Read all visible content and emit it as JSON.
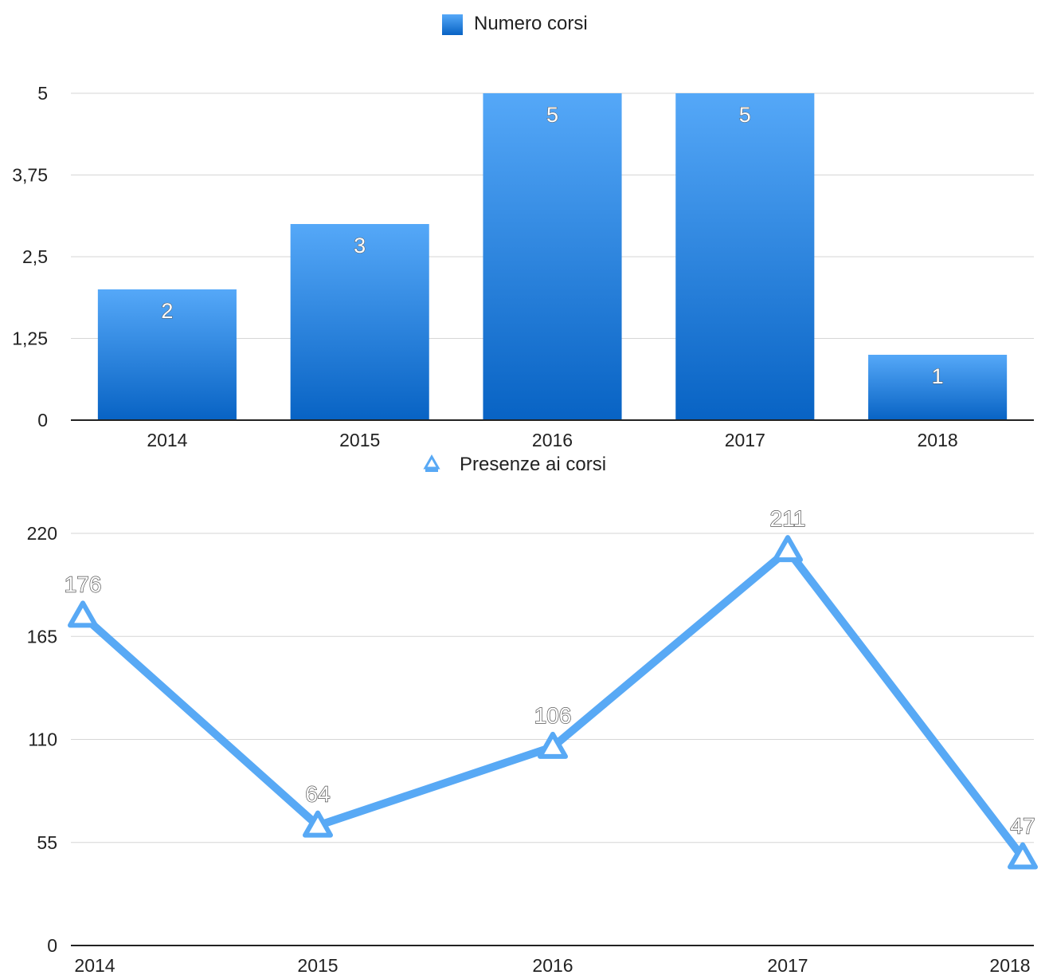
{
  "chart_data": [
    {
      "type": "bar",
      "title": "",
      "legend": {
        "label": "Numero corsi",
        "position": "top"
      },
      "categories": [
        "2014",
        "2015",
        "2016",
        "2017",
        "2018"
      ],
      "series": [
        {
          "name": "Numero corsi",
          "values": [
            2,
            3,
            5,
            5,
            1
          ]
        }
      ],
      "data_labels": [
        "2",
        "3",
        "5",
        "5",
        "1"
      ],
      "y_ticks": [
        "0",
        "1,25",
        "2,5",
        "3,75",
        "5"
      ],
      "y_tick_values": [
        0,
        1.25,
        2.5,
        3.75,
        5
      ],
      "ylim": [
        0,
        5
      ],
      "grid": true,
      "colors": {
        "bar_top": "#55a8f8",
        "bar_bottom": "#0863c4"
      }
    },
    {
      "type": "line",
      "title": "",
      "legend": {
        "label": "Presenze ai corsi",
        "position": "top"
      },
      "categories": [
        "2014",
        "2015",
        "2016",
        "2017",
        "2018"
      ],
      "series": [
        {
          "name": "Presenze ai corsi",
          "values": [
            176,
            64,
            106,
            211,
            47
          ]
        }
      ],
      "data_labels": [
        "176",
        "64",
        "106",
        "211",
        "47"
      ],
      "marker": "triangle",
      "y_ticks": [
        "0",
        "55",
        "110",
        "165",
        "220"
      ],
      "y_tick_values": [
        0,
        55,
        110,
        165,
        220
      ],
      "ylim": [
        0,
        220
      ],
      "grid": true,
      "colors": {
        "line": "#58a9f5"
      }
    }
  ]
}
